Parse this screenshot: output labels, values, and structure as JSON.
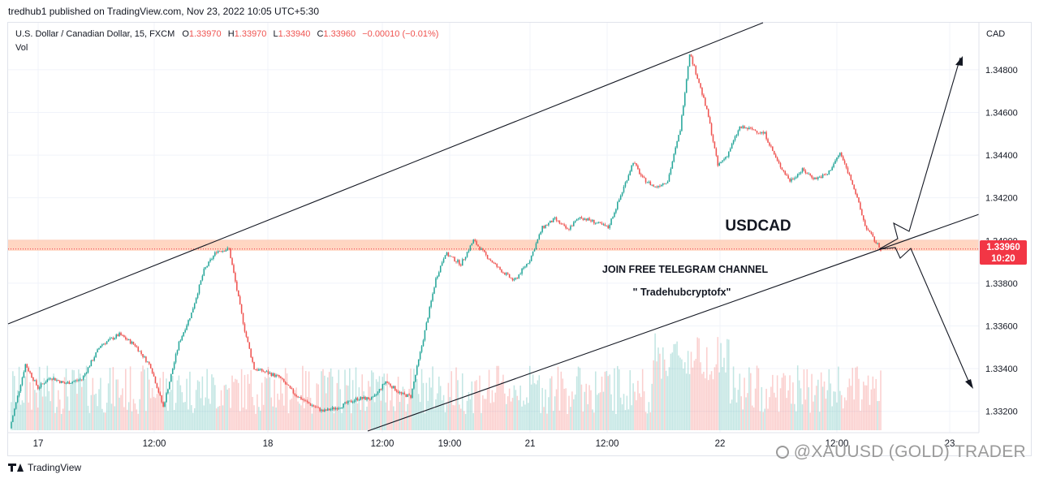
{
  "header": {
    "published": "tredhub1 published on TradingView.com, Nov 23, 2022 10:05 UTC+5:30"
  },
  "legend": {
    "symbol": "U.S. Dollar / Canadian Dollar, 15, FXCM",
    "o_label": "O",
    "o": "1.33970",
    "h_label": "H",
    "h": "1.33970",
    "l_label": "L",
    "l": "1.33940",
    "c_label": "C",
    "c": "1.33960",
    "change": "−0.00010 (−0.01%)",
    "vol": "Vol"
  },
  "axis": {
    "currency": "CAD"
  },
  "annotations": {
    "symbol_text": "USDCAD",
    "telegram": "JOIN FREE TELEGRAM CHANNEL",
    "handle": "\" Tradehubcryptofx\""
  },
  "price_badge": {
    "value": "1.33960",
    "countdown": "10:20"
  },
  "footer": {
    "brand": "TradingView"
  },
  "watermark": {
    "text": "@XAUUSD (GOLD) TRADER"
  },
  "colors": {
    "up": "#26a69a",
    "down": "#ef5350",
    "line": "#131722",
    "zone": "#ffccb3",
    "badge": "#f23645"
  },
  "chart_data": {
    "type": "candlestick",
    "symbol": "USDCAD",
    "interval": "15",
    "ylim": [
      1.331,
      1.3502
    ],
    "y_ticks": [
      "1.34800",
      "1.34600",
      "1.34400",
      "1.34200",
      "1.34000",
      "1.33800",
      "1.33600",
      "1.33400",
      "1.33200"
    ],
    "x_ticks": [
      "17",
      "12:00",
      "18",
      "12:00",
      "19:00",
      "21",
      "12:00",
      "22",
      "12:00",
      "23"
    ],
    "close_path": [
      [
        0,
        1.3312
      ],
      [
        10,
        1.3342
      ],
      [
        18,
        1.3331
      ],
      [
        26,
        1.3336
      ],
      [
        35,
        1.3333
      ],
      [
        46,
        1.3335
      ],
      [
        58,
        1.3351
      ],
      [
        70,
        1.3356
      ],
      [
        80,
        1.3351
      ],
      [
        90,
        1.3341
      ],
      [
        98,
        1.3322
      ],
      [
        108,
        1.3352
      ],
      [
        116,
        1.3366
      ],
      [
        124,
        1.3386
      ],
      [
        132,
        1.3395
      ],
      [
        140,
        1.3396
      ],
      [
        146,
        1.3373
      ],
      [
        150,
        1.3358
      ],
      [
        156,
        1.334
      ],
      [
        165,
        1.3338
      ],
      [
        172,
        1.3336
      ],
      [
        182,
        1.3328
      ],
      [
        190,
        1.3324
      ],
      [
        200,
        1.332
      ],
      [
        210,
        1.3322
      ],
      [
        222,
        1.3326
      ],
      [
        232,
        1.3326
      ],
      [
        240,
        1.3334
      ],
      [
        250,
        1.3328
      ],
      [
        256,
        1.3327
      ],
      [
        264,
        1.3354
      ],
      [
        272,
        1.3382
      ],
      [
        278,
        1.3394
      ],
      [
        288,
        1.3389
      ],
      [
        296,
        1.34
      ],
      [
        304,
        1.3393
      ],
      [
        312,
        1.3387
      ],
      [
        322,
        1.3381
      ],
      [
        332,
        1.3391
      ],
      [
        340,
        1.3406
      ],
      [
        348,
        1.341
      ],
      [
        356,
        1.3405
      ],
      [
        364,
        1.3411
      ],
      [
        372,
        1.3409
      ],
      [
        382,
        1.3406
      ],
      [
        390,
        1.3421
      ],
      [
        398,
        1.3437
      ],
      [
        404,
        1.3429
      ],
      [
        412,
        1.3425
      ],
      [
        420,
        1.3428
      ],
      [
        428,
        1.3452
      ],
      [
        434,
        1.3488
      ],
      [
        440,
        1.3474
      ],
      [
        446,
        1.3458
      ],
      [
        452,
        1.3435
      ],
      [
        458,
        1.344
      ],
      [
        466,
        1.3453
      ],
      [
        474,
        1.3452
      ],
      [
        482,
        1.345
      ],
      [
        490,
        1.3437
      ],
      [
        498,
        1.3428
      ],
      [
        506,
        1.3433
      ],
      [
        514,
        1.3429
      ],
      [
        522,
        1.3431
      ],
      [
        530,
        1.3441
      ],
      [
        538,
        1.3427
      ],
      [
        546,
        1.3407
      ],
      [
        552,
        1.34
      ],
      [
        556,
        1.3396
      ]
    ],
    "volume_hint": "per-candle volume bars at bottom",
    "drawings": {
      "channel_upper": [
        [
          0,
          1.3364
        ],
        [
          460,
          1.352
        ]
      ],
      "channel_lower": [
        [
          230,
          1.3313
        ],
        [
          600,
          1.341
        ]
      ],
      "support_zone": [
        1.3396,
        1.34
      ],
      "arrow_up_target": 1.349,
      "arrow_down_target": 1.3328
    }
  }
}
